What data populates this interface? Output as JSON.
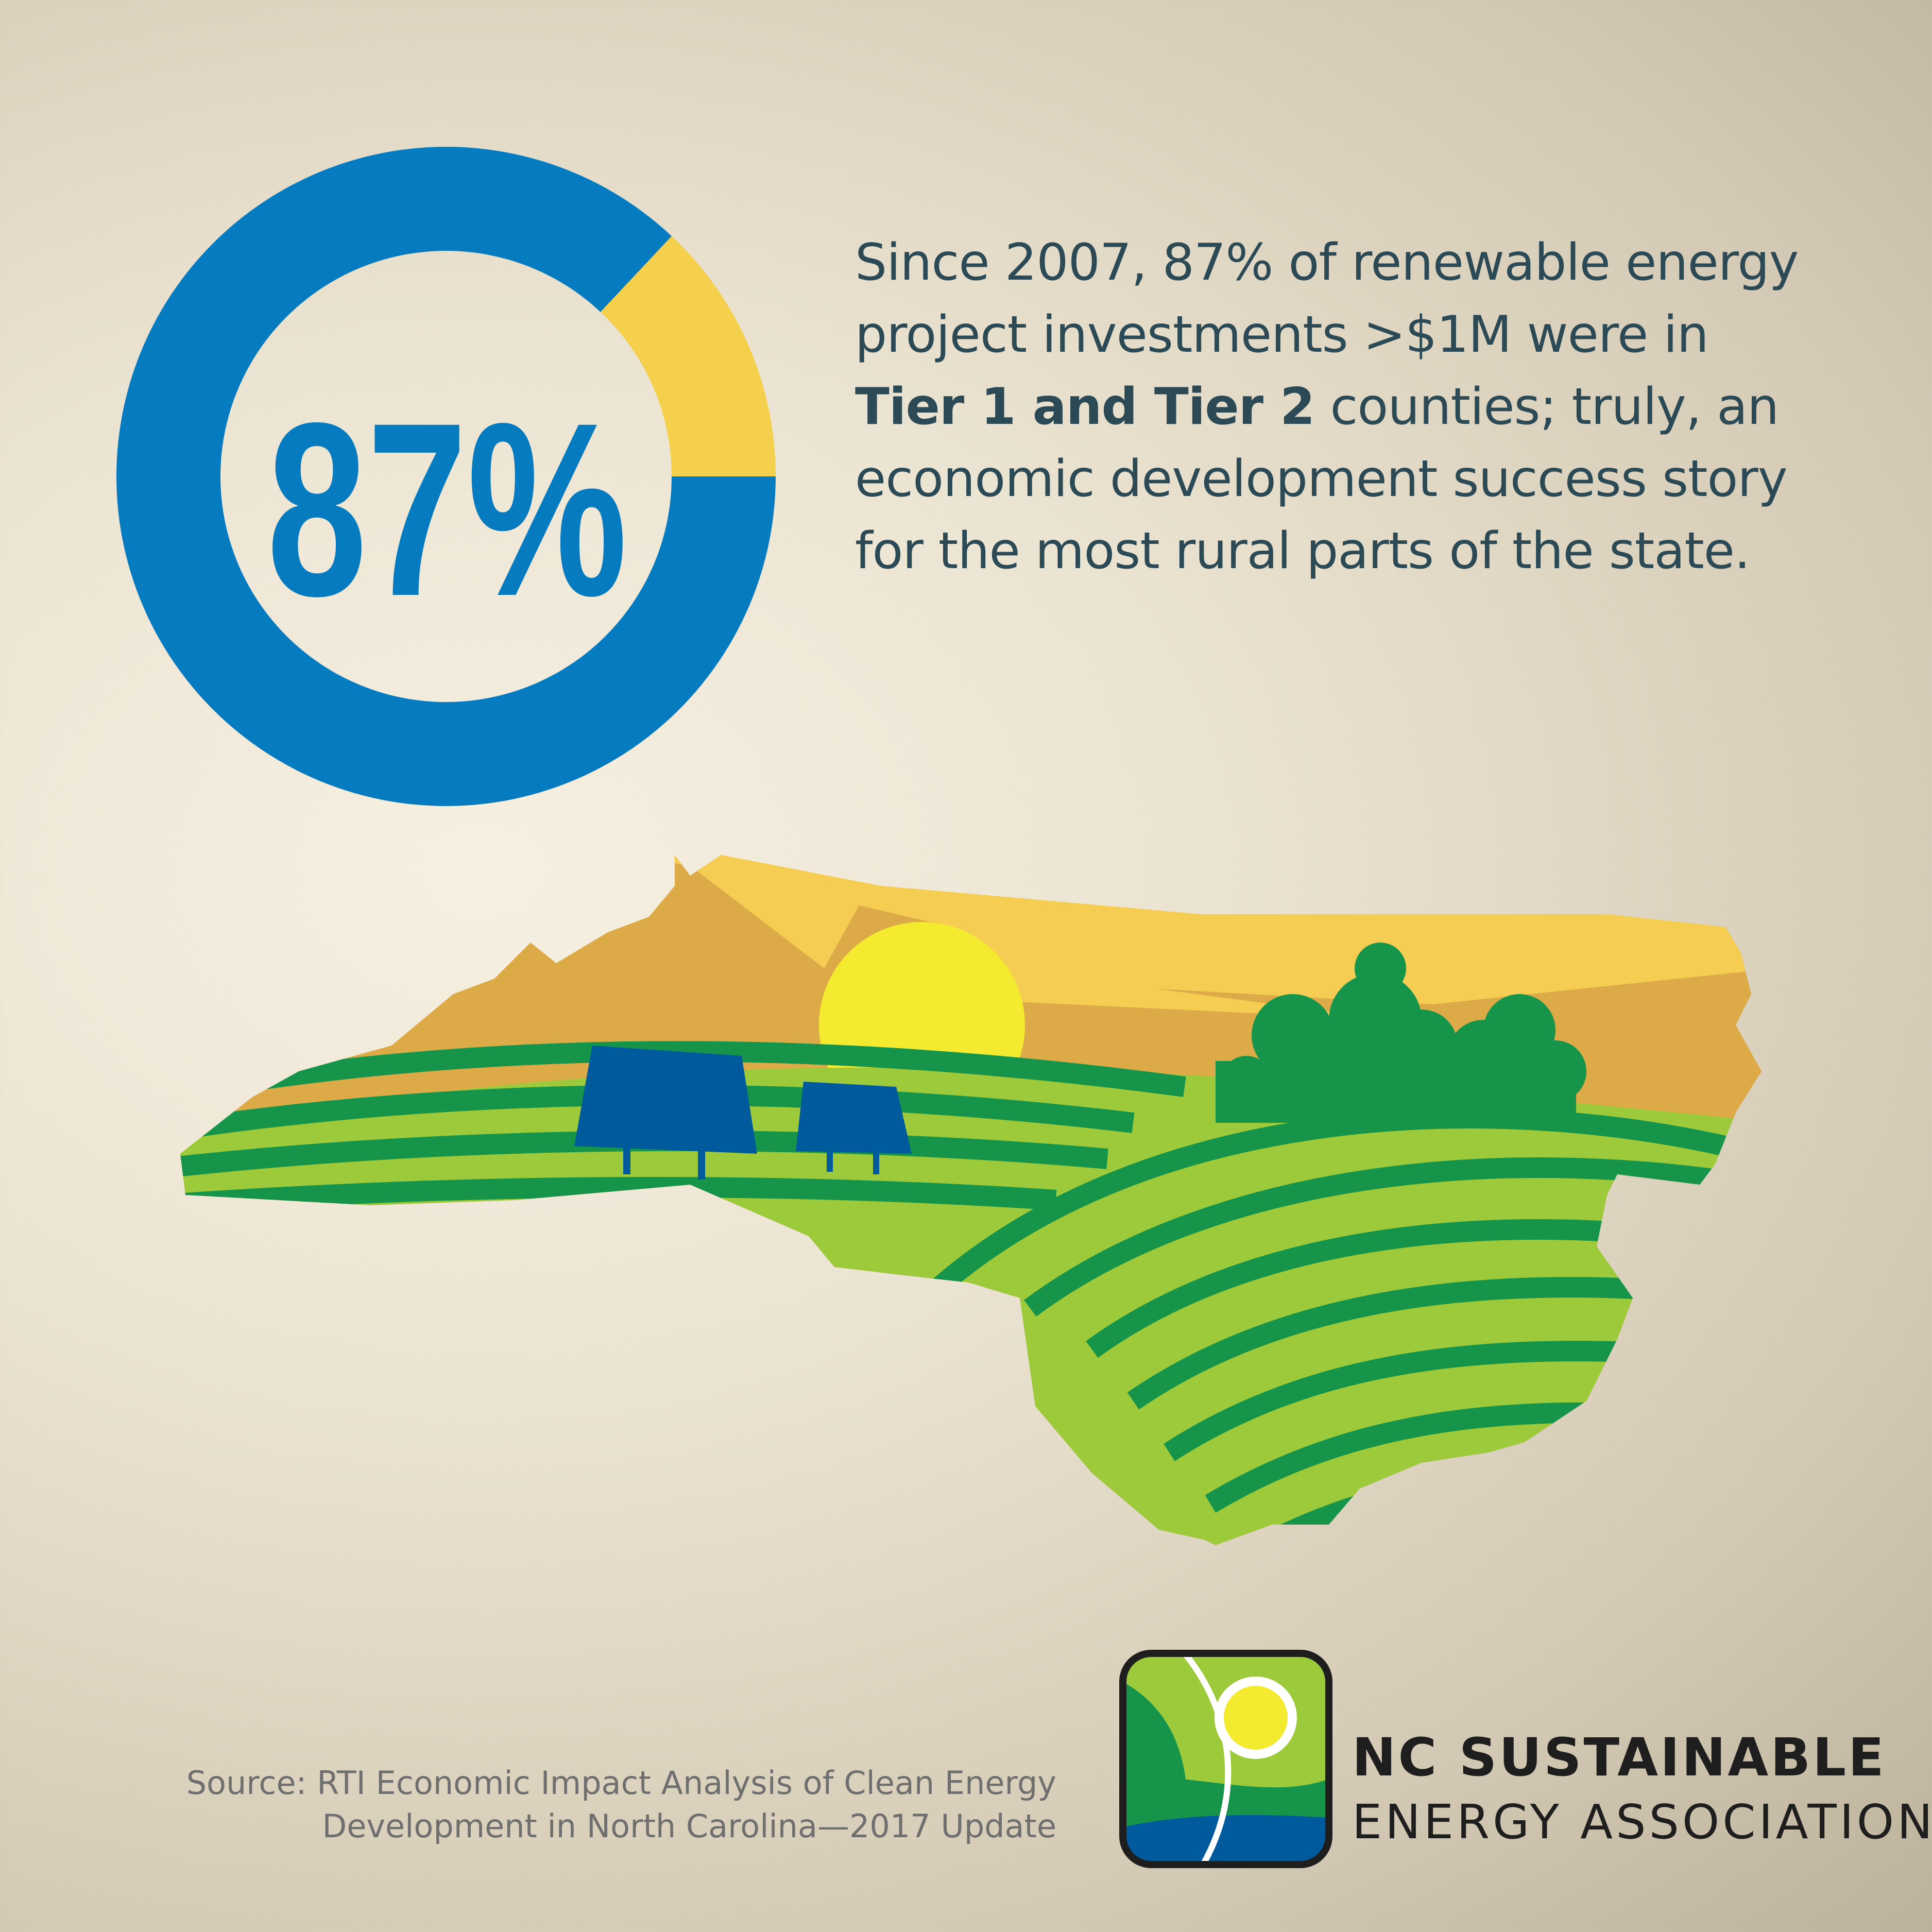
{
  "chart_data": {
    "type": "pie",
    "title": "",
    "slices": [
      {
        "value": 87,
        "color": "#077bc0"
      },
      {
        "value": 13,
        "color": "#f5d04d"
      }
    ],
    "center_label": "87%"
  },
  "headline": {
    "line1": "Since 2007, 87% of renewable energy",
    "line2": "project investments >$1M were in",
    "line3_bold": "Tier 1 and Tier 2",
    "line3_rest": " counties; truly, an",
    "line4": "economic development success story",
    "line5": "for the most rural parts of the state."
  },
  "source": {
    "line1": "Source: RTI Economic Impact Analysis of Clean Energy",
    "line2": "Development in North Carolina—2017 Update"
  },
  "org": {
    "line1": "NC SUSTAINABLE",
    "line2": "ENERGY ASSOCIATION"
  },
  "colors": {
    "blue": "#077bc0",
    "yellow": "#f5d04d",
    "text": "#2c4a56",
    "green_dark": "#16954a",
    "green_light": "#9dca3b",
    "sun": "#f4ea30",
    "panel": "#005a9c"
  }
}
